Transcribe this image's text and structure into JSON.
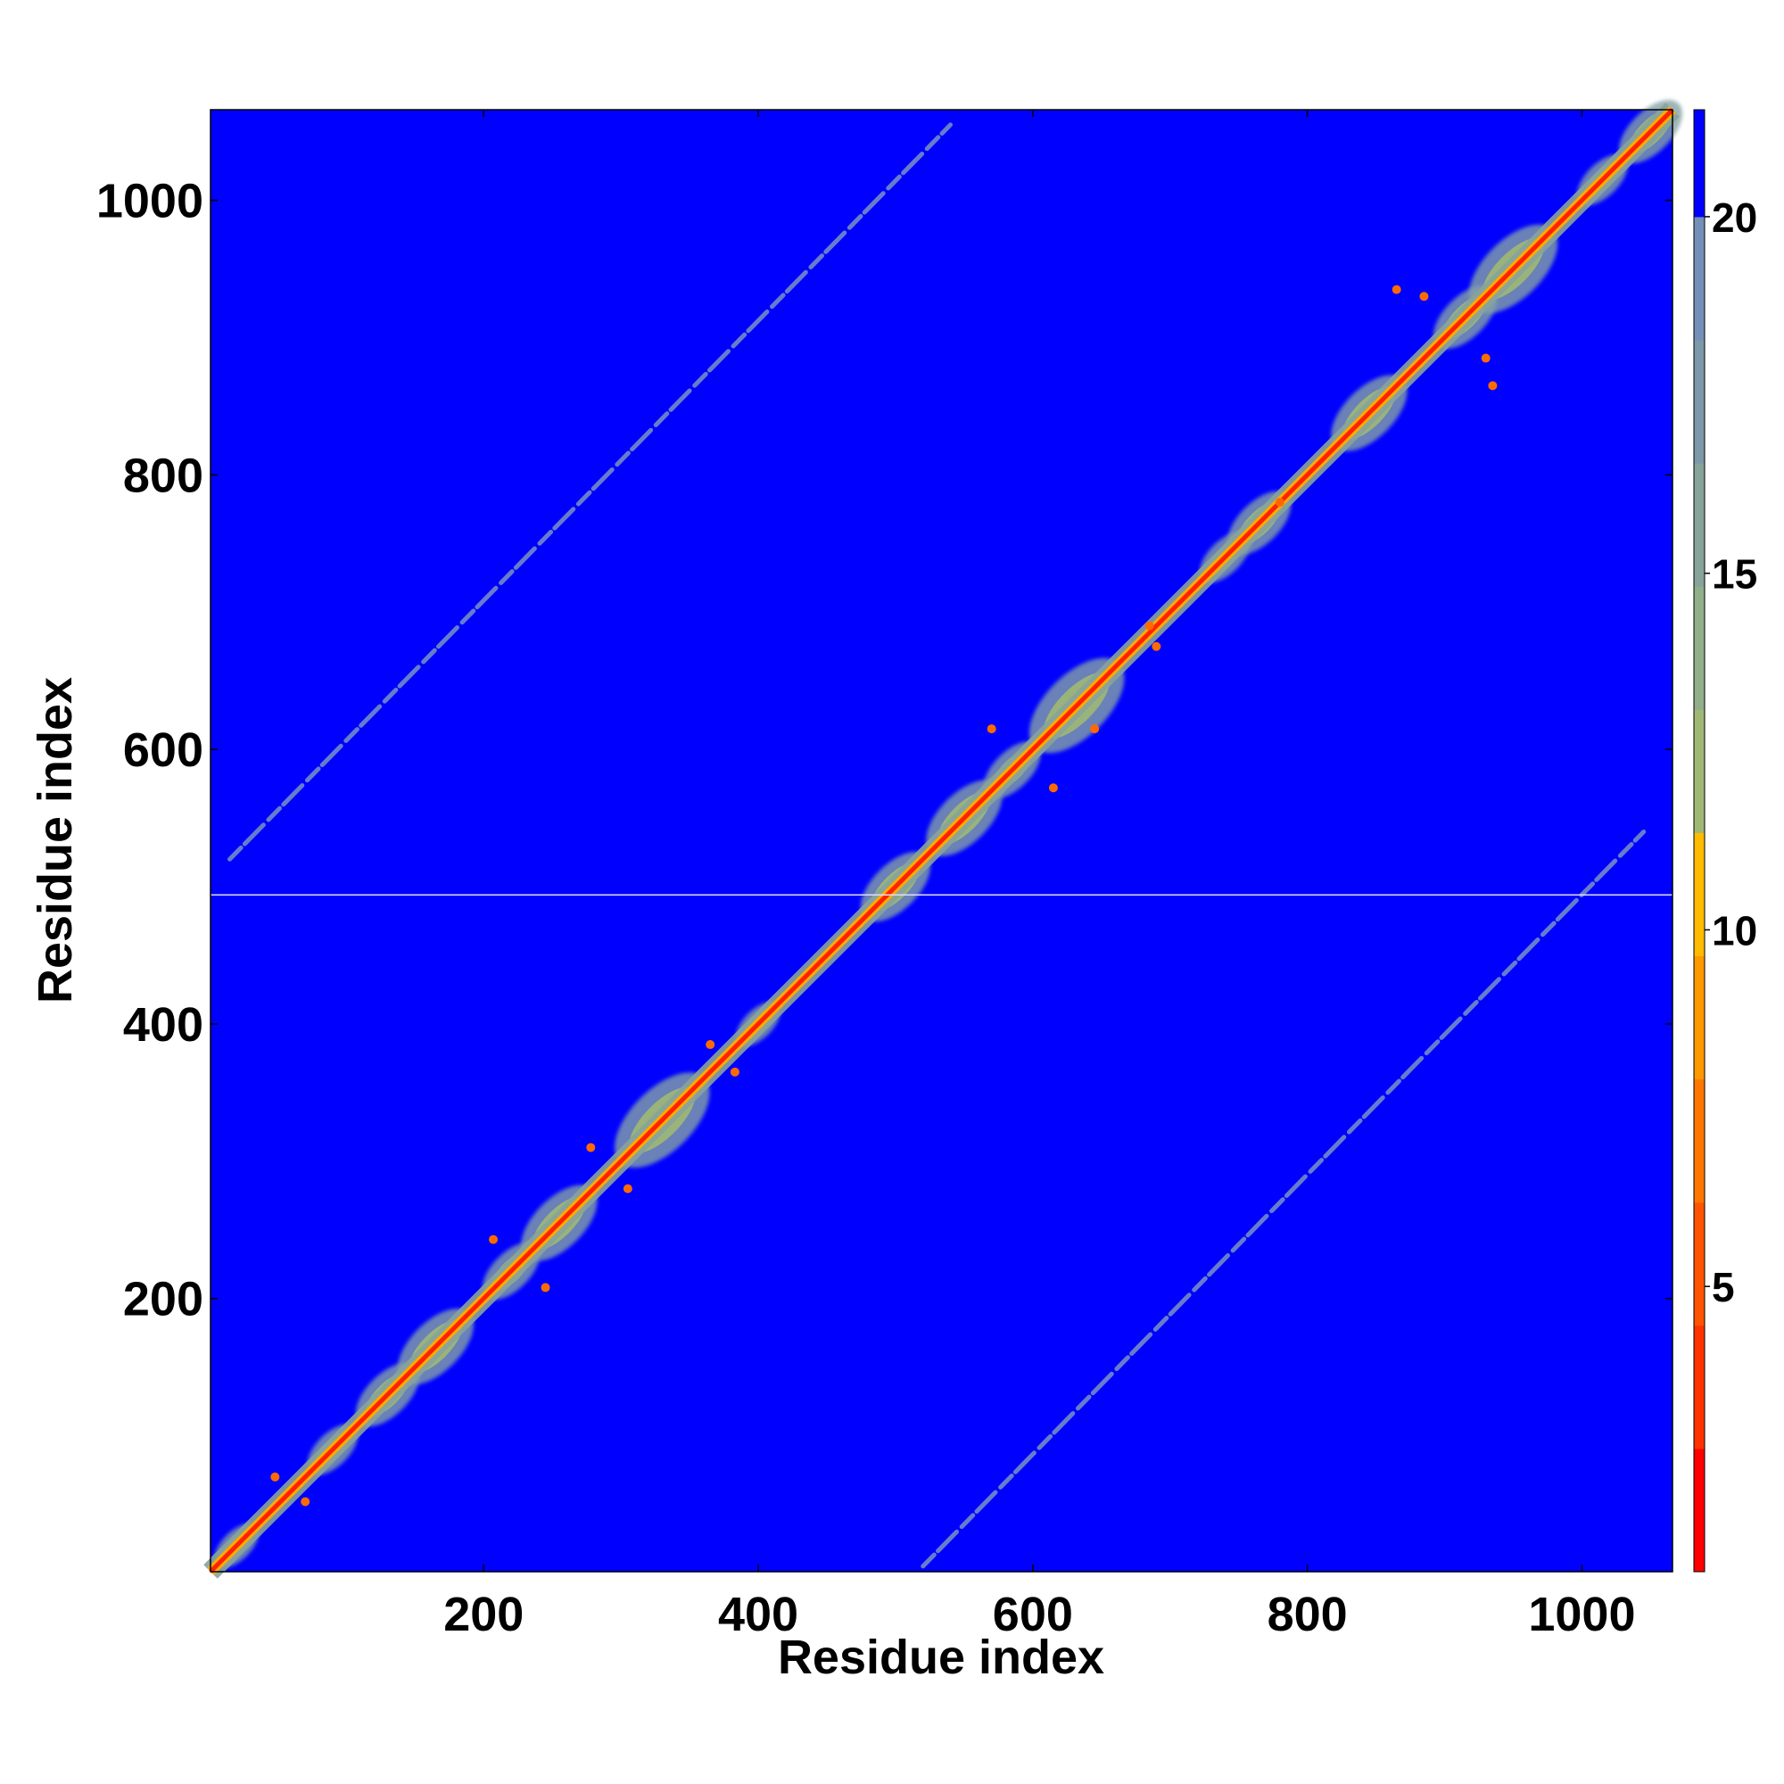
{
  "chart_data": {
    "type": "heatmap",
    "title": "",
    "xlabel": "Residue index",
    "ylabel": "Residue index",
    "xlim": [
      1,
      1066
    ],
    "ylim": [
      1,
      1066
    ],
    "x_ticks": [
      200,
      400,
      600,
      800,
      1000
    ],
    "y_ticks": [
      200,
      400,
      600,
      800,
      1000
    ],
    "gap_line_residue": 494,
    "colorbar": {
      "ticks": [
        5,
        10,
        15,
        20
      ],
      "range": [
        1,
        21.5
      ],
      "colors": [
        "#ff0000",
        "#ff3300",
        "#ff5500",
        "#ff7700",
        "#ff9900",
        "#ffbb00",
        "#9fb874",
        "#92ae8a",
        "#87a39a",
        "#7d98a8",
        "#7590b8",
        "#0000ff"
      ]
    },
    "contact_features": {
      "main_diagonal": [
        1,
        1066
      ],
      "domains": [
        {
          "center": 20,
          "radius": 14
        },
        {
          "center": 90,
          "radius": 16
        },
        {
          "center": 130,
          "radius": 20
        },
        {
          "center": 165,
          "radius": 24
        },
        {
          "center": 220,
          "radius": 18
        },
        {
          "center": 255,
          "radius": 24
        },
        {
          "center": 330,
          "radius": 30
        },
        {
          "center": 400,
          "radius": 14
        },
        {
          "center": 500,
          "radius": 22
        },
        {
          "center": 550,
          "radius": 24
        },
        {
          "center": 585,
          "radius": 18
        },
        {
          "center": 632,
          "radius": 30
        },
        {
          "center": 740,
          "radius": 16
        },
        {
          "center": 765,
          "radius": 20
        },
        {
          "center": 845,
          "radius": 24
        },
        {
          "center": 915,
          "radius": 20
        },
        {
          "center": 950,
          "radius": 28
        },
        {
          "center": 1015,
          "radius": 16
        },
        {
          "center": 1050,
          "radius": 20
        }
      ],
      "off_diagonal_bands": [
        {
          "x_start": 15,
          "y_start": 520,
          "x_end": 540,
          "y_end": 1055
        },
        {
          "x_start": 520,
          "y_start": 5,
          "x_end": 1045,
          "y_end": 540
        }
      ],
      "close_contacts": [
        {
          "x": 48,
          "y": 70
        },
        {
          "x": 70,
          "y": 52
        },
        {
          "x": 207,
          "y": 243
        },
        {
          "x": 245,
          "y": 208
        },
        {
          "x": 278,
          "y": 310
        },
        {
          "x": 305,
          "y": 280
        },
        {
          "x": 365,
          "y": 385
        },
        {
          "x": 383,
          "y": 365
        },
        {
          "x": 570,
          "y": 615
        },
        {
          "x": 615,
          "y": 572
        },
        {
          "x": 645,
          "y": 615
        },
        {
          "x": 685,
          "y": 690
        },
        {
          "x": 690,
          "y": 675
        },
        {
          "x": 780,
          "y": 780
        },
        {
          "x": 865,
          "y": 935
        },
        {
          "x": 935,
          "y": 865
        },
        {
          "x": 885,
          "y": 930
        },
        {
          "x": 930,
          "y": 885
        }
      ]
    }
  }
}
